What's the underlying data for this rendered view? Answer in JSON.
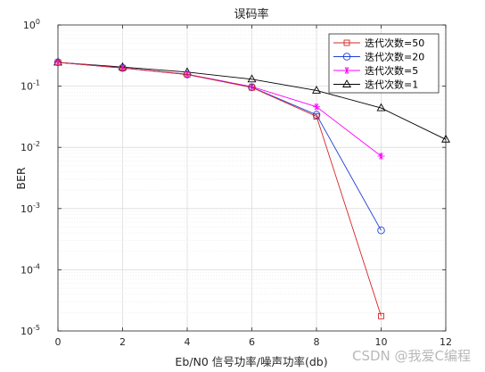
{
  "chart_data": {
    "type": "line",
    "title": "误码率",
    "xlabel": "Eb/N0 信号功率/噪声功率(db)",
    "ylabel": "BER",
    "xlim": [
      0,
      12
    ],
    "ylim": [
      1e-05,
      1
    ],
    "yscale": "log",
    "xticks": [
      0,
      2,
      4,
      6,
      8,
      10,
      12
    ],
    "yticks": [
      {
        "base": "10",
        "exp": "0",
        "value": 1
      },
      {
        "base": "10",
        "exp": "-1",
        "value": 0.1
      },
      {
        "base": "10",
        "exp": "-2",
        "value": 0.01
      },
      {
        "base": "10",
        "exp": "-3",
        "value": 0.001
      },
      {
        "base": "10",
        "exp": "-4",
        "value": 0.0001
      },
      {
        "base": "10",
        "exp": "-5",
        "value": 1e-05
      }
    ],
    "grid": true,
    "minor_grid": true,
    "legend_position": "top-right",
    "series": [
      {
        "name": "迭代次数=50",
        "color": "#d62728",
        "marker": "square",
        "x": [
          0,
          2,
          4,
          6,
          8,
          10
        ],
        "y": [
          0.245,
          0.198,
          0.155,
          0.095,
          0.032,
          1.75e-05
        ]
      },
      {
        "name": "迭代次数=20",
        "color": "#1f3fd4",
        "marker": "circle",
        "x": [
          0,
          2,
          4,
          6,
          8,
          10
        ],
        "y": [
          0.245,
          0.198,
          0.155,
          0.096,
          0.034,
          0.00044
        ]
      },
      {
        "name": "迭代次数=5",
        "color": "#ff00ff",
        "marker": "star",
        "x": [
          0,
          2,
          4,
          6,
          8,
          10
        ],
        "y": [
          0.245,
          0.198,
          0.157,
          0.098,
          0.046,
          0.0072
        ]
      },
      {
        "name": "迭代次数=1",
        "color": "#000000",
        "marker": "triangle",
        "x": [
          0,
          2,
          4,
          6,
          8,
          10,
          12
        ],
        "y": [
          0.245,
          0.205,
          0.17,
          0.13,
          0.085,
          0.044,
          0.0135
        ]
      }
    ]
  },
  "watermark": "CSDN @我爱C编程"
}
